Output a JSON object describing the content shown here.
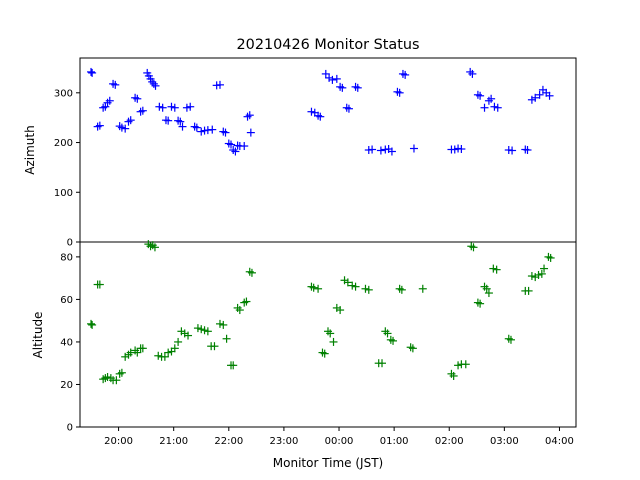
{
  "chart_data": {
    "type": "scatter",
    "title": "20210426 Monitor Status",
    "xlabel": "Monitor Time (JST)",
    "x_unit": "hours after 19:00 JST",
    "xlim": [
      0.3,
      9.3
    ],
    "x_ticks": [
      {
        "value": 1,
        "label": "20:00"
      },
      {
        "value": 2,
        "label": "21:00"
      },
      {
        "value": 3,
        "label": "22:00"
      },
      {
        "value": 4,
        "label": "23:00"
      },
      {
        "value": 5,
        "label": "00:00"
      },
      {
        "value": 6,
        "label": "01:00"
      },
      {
        "value": 7,
        "label": "02:00"
      },
      {
        "value": 8,
        "label": "03:00"
      },
      {
        "value": 9,
        "label": "04:00"
      }
    ],
    "marker": "plus",
    "panels": [
      {
        "id": "azimuth",
        "ylabel": "Azimuth",
        "ylim": [
          0,
          370
        ],
        "yticks": [
          0,
          100,
          200,
          300
        ],
        "color": "#0000ff",
        "points": [
          [
            0.5,
            342
          ],
          [
            0.52,
            340
          ],
          [
            0.62,
            232
          ],
          [
            0.66,
            234
          ],
          [
            0.72,
            270
          ],
          [
            0.76,
            272
          ],
          [
            0.8,
            280
          ],
          [
            0.84,
            284
          ],
          [
            0.9,
            318
          ],
          [
            0.94,
            316
          ],
          [
            1.02,
            233
          ],
          [
            1.06,
            230
          ],
          [
            1.12,
            228
          ],
          [
            1.18,
            242
          ],
          [
            1.22,
            245
          ],
          [
            1.3,
            290
          ],
          [
            1.34,
            288
          ],
          [
            1.4,
            262
          ],
          [
            1.44,
            264
          ],
          [
            1.52,
            340
          ],
          [
            1.55,
            334
          ],
          [
            1.58,
            328
          ],
          [
            1.61,
            322
          ],
          [
            1.64,
            318
          ],
          [
            1.67,
            314
          ],
          [
            1.74,
            272
          ],
          [
            1.8,
            270
          ],
          [
            1.86,
            245
          ],
          [
            1.9,
            244
          ],
          [
            1.96,
            272
          ],
          [
            2.02,
            270
          ],
          [
            2.08,
            244
          ],
          [
            2.12,
            242
          ],
          [
            2.16,
            232
          ],
          [
            2.24,
            270
          ],
          [
            2.3,
            272
          ],
          [
            2.38,
            232
          ],
          [
            2.42,
            230
          ],
          [
            2.5,
            222
          ],
          [
            2.56,
            224
          ],
          [
            2.62,
            225
          ],
          [
            2.7,
            226
          ],
          [
            2.78,
            315
          ],
          [
            2.84,
            316
          ],
          [
            2.9,
            222
          ],
          [
            2.94,
            220
          ],
          [
            3.0,
            198
          ],
          [
            3.04,
            196
          ],
          [
            3.08,
            185
          ],
          [
            3.12,
            182
          ],
          [
            3.16,
            194
          ],
          [
            3.2,
            193
          ],
          [
            3.28,
            193
          ],
          [
            3.34,
            252
          ],
          [
            3.38,
            255
          ],
          [
            3.4,
            220
          ],
          [
            4.5,
            262
          ],
          [
            4.56,
            260
          ],
          [
            4.62,
            254
          ],
          [
            4.66,
            252
          ],
          [
            4.76,
            338
          ],
          [
            4.82,
            330
          ],
          [
            4.88,
            326
          ],
          [
            4.96,
            328
          ],
          [
            5.02,
            312
          ],
          [
            5.06,
            310
          ],
          [
            5.14,
            270
          ],
          [
            5.18,
            268
          ],
          [
            5.3,
            312
          ],
          [
            5.34,
            310
          ],
          [
            5.54,
            185
          ],
          [
            5.6,
            186
          ],
          [
            5.76,
            184
          ],
          [
            5.84,
            186
          ],
          [
            5.9,
            187
          ],
          [
            5.96,
            182
          ],
          [
            6.06,
            302
          ],
          [
            6.1,
            300
          ],
          [
            6.16,
            338
          ],
          [
            6.2,
            336
          ],
          [
            6.36,
            188
          ],
          [
            7.04,
            186
          ],
          [
            7.1,
            186
          ],
          [
            7.16,
            188
          ],
          [
            7.22,
            187
          ],
          [
            7.38,
            342
          ],
          [
            7.42,
            338
          ],
          [
            7.52,
            296
          ],
          [
            7.56,
            294
          ],
          [
            7.64,
            270
          ],
          [
            7.72,
            284
          ],
          [
            7.76,
            288
          ],
          [
            7.82,
            272
          ],
          [
            7.88,
            270
          ],
          [
            8.08,
            185
          ],
          [
            8.14,
            184
          ],
          [
            8.38,
            186
          ],
          [
            8.42,
            185
          ],
          [
            8.5,
            286
          ],
          [
            8.56,
            290
          ],
          [
            8.64,
            296
          ],
          [
            8.7,
            306
          ],
          [
            8.76,
            300
          ],
          [
            8.82,
            294
          ]
        ]
      },
      {
        "id": "altitude",
        "ylabel": "Altitude",
        "ylim": [
          0,
          87
        ],
        "yticks": [
          0,
          20,
          40,
          60,
          80
        ],
        "color": "#008000",
        "points": [
          [
            0.5,
            48.5
          ],
          [
            0.52,
            48
          ],
          [
            0.62,
            67
          ],
          [
            0.66,
            67
          ],
          [
            0.72,
            22.5
          ],
          [
            0.76,
            23
          ],
          [
            0.8,
            23.5
          ],
          [
            0.86,
            23
          ],
          [
            0.9,
            22
          ],
          [
            0.96,
            22
          ],
          [
            1.02,
            25
          ],
          [
            1.06,
            25.5
          ],
          [
            1.12,
            33
          ],
          [
            1.18,
            34
          ],
          [
            1.22,
            35
          ],
          [
            1.3,
            36
          ],
          [
            1.34,
            35
          ],
          [
            1.4,
            37
          ],
          [
            1.44,
            37
          ],
          [
            1.54,
            86
          ],
          [
            1.58,
            85
          ],
          [
            1.62,
            85.5
          ],
          [
            1.66,
            84.5
          ],
          [
            1.72,
            33.5
          ],
          [
            1.78,
            33
          ],
          [
            1.84,
            33
          ],
          [
            1.9,
            35
          ],
          [
            1.96,
            35.5
          ],
          [
            2.02,
            37
          ],
          [
            2.08,
            40
          ],
          [
            2.14,
            45
          ],
          [
            2.2,
            44
          ],
          [
            2.26,
            43
          ],
          [
            2.44,
            46.5
          ],
          [
            2.5,
            46
          ],
          [
            2.56,
            45.5
          ],
          [
            2.62,
            45
          ],
          [
            2.68,
            38
          ],
          [
            2.74,
            38
          ],
          [
            2.84,
            48.5
          ],
          [
            2.9,
            48
          ],
          [
            2.96,
            41.5
          ],
          [
            3.04,
            29
          ],
          [
            3.08,
            29
          ],
          [
            3.16,
            56
          ],
          [
            3.2,
            55
          ],
          [
            3.28,
            58.5
          ],
          [
            3.32,
            59
          ],
          [
            3.38,
            73
          ],
          [
            3.42,
            72.5
          ],
          [
            4.5,
            66
          ],
          [
            4.54,
            65.5
          ],
          [
            4.62,
            65
          ],
          [
            4.7,
            35
          ],
          [
            4.74,
            34.5
          ],
          [
            4.8,
            45
          ],
          [
            4.84,
            44
          ],
          [
            4.9,
            40
          ],
          [
            4.96,
            56
          ],
          [
            5.02,
            55
          ],
          [
            5.1,
            69
          ],
          [
            5.16,
            68
          ],
          [
            5.24,
            66.5
          ],
          [
            5.3,
            66
          ],
          [
            5.48,
            65
          ],
          [
            5.54,
            64.5
          ],
          [
            5.72,
            30
          ],
          [
            5.78,
            30
          ],
          [
            5.84,
            45
          ],
          [
            5.88,
            44
          ],
          [
            5.94,
            41
          ],
          [
            5.98,
            40.5
          ],
          [
            6.1,
            65
          ],
          [
            6.14,
            64.5
          ],
          [
            6.3,
            37.5
          ],
          [
            6.34,
            37
          ],
          [
            6.52,
            65
          ],
          [
            7.04,
            25
          ],
          [
            7.08,
            24
          ],
          [
            7.16,
            29
          ],
          [
            7.22,
            29.5
          ],
          [
            7.3,
            29.5
          ],
          [
            7.4,
            85
          ],
          [
            7.44,
            84.5
          ],
          [
            7.52,
            58.5
          ],
          [
            7.56,
            58
          ],
          [
            7.64,
            66
          ],
          [
            7.68,
            65
          ],
          [
            7.72,
            63
          ],
          [
            7.8,
            74.5
          ],
          [
            7.86,
            74
          ],
          [
            8.08,
            41.5
          ],
          [
            8.12,
            41
          ],
          [
            8.38,
            64
          ],
          [
            8.44,
            64
          ],
          [
            8.5,
            71
          ],
          [
            8.56,
            70.5
          ],
          [
            8.62,
            71.5
          ],
          [
            8.68,
            72
          ],
          [
            8.72,
            74.5
          ],
          [
            8.8,
            80
          ],
          [
            8.84,
            79.5
          ]
        ]
      }
    ]
  }
}
